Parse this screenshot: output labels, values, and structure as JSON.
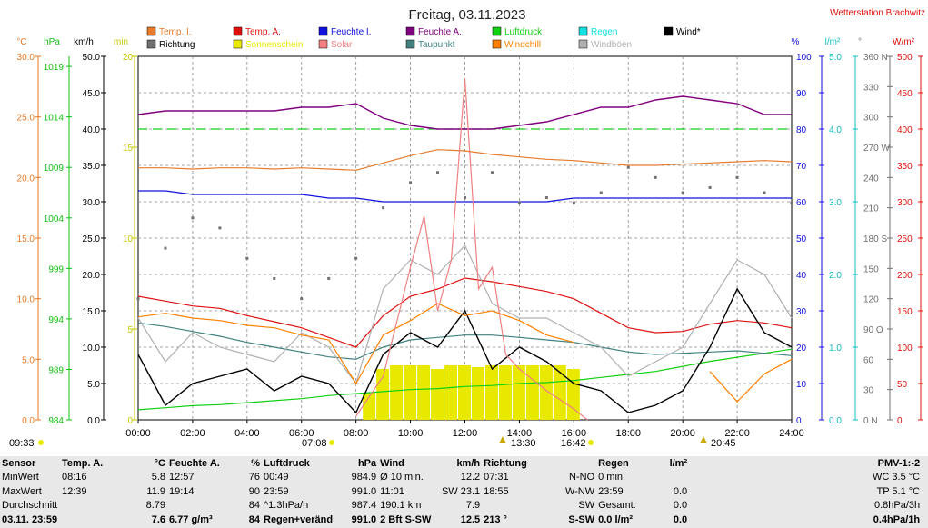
{
  "title": "Freitag, 03.11.2023",
  "station": "Wetterstation Brachwitz",
  "legend": [
    {
      "name": "Temp. I.",
      "color": "#e87a2a"
    },
    {
      "name": "Temp. A.",
      "color": "#e01010"
    },
    {
      "name": "Feuchte I.",
      "color": "#1010e0"
    },
    {
      "name": "Feuchte A.",
      "color": "#800080"
    },
    {
      "name": "Luftdruck",
      "color": "#10d010"
    },
    {
      "name": "Regen",
      "color": "#10e0e0"
    },
    {
      "name": "Wind*",
      "color": "#000000"
    },
    {
      "name": "Richtung",
      "color": "#707070"
    },
    {
      "name": "Sonnenschein",
      "color": "#e8e800"
    },
    {
      "name": "Solar",
      "color": "#f08080"
    },
    {
      "name": "Taupunkt",
      "color": "#408080"
    },
    {
      "name": "Windchill",
      "color": "#ff8000"
    },
    {
      "name": "Windböen",
      "color": "#b0b0b0"
    }
  ],
  "axes_headers": {
    "temp": "°C",
    "hpa": "hPa",
    "kmh": "km/h",
    "min": "min",
    "pct": "%",
    "rain": "l/m²",
    "deg": "°",
    "wm2": "W/m²"
  },
  "axes_colors": {
    "temp": "#e87a2a",
    "hpa": "#10c010",
    "kmh": "#000000",
    "min": "#c8c800",
    "pct": "#1010e0",
    "rain": "#10c0c0",
    "deg": "#707070",
    "wm2": "#e01010"
  },
  "chart_data": {
    "type": "line",
    "x_ticks": [
      "00:00",
      "02:00",
      "04:00",
      "06:00",
      "08:00",
      "10:00",
      "12:00",
      "14:00",
      "16:00",
      "18:00",
      "20:00",
      "22:00",
      "24:00"
    ],
    "axes": {
      "temp": {
        "ticks": [
          "30.0",
          "25.0",
          "20.0",
          "15.0",
          "10.0",
          "5.0",
          "0.0"
        ]
      },
      "hpa": {
        "ticks": [
          "1019",
          "1014",
          "1009",
          "1004",
          "999",
          "994",
          "989",
          "984"
        ]
      },
      "kmh": {
        "ticks": [
          "50.0",
          "45.0",
          "40.0",
          "35.0",
          "30.0",
          "25.0",
          "20.0",
          "15.0",
          "10.0",
          "5.0",
          "0.0"
        ]
      },
      "min": {
        "ticks": [
          "20",
          "15",
          "10",
          "5",
          "0"
        ]
      },
      "pct": {
        "ticks": [
          "100",
          "90",
          "80",
          "70",
          "60",
          "50",
          "40",
          "30",
          "20",
          "10",
          "0"
        ]
      },
      "rain": {
        "ticks": [
          "5.0",
          "4.0",
          "3.0",
          "2.0",
          "1.0",
          "0.0"
        ]
      },
      "deg": {
        "ticks": [
          "360 N",
          "330",
          "300",
          "270 W",
          "240",
          "210",
          "180 S",
          "150",
          "120",
          "90 O",
          "60",
          "30",
          "0 N"
        ]
      },
      "wm2": {
        "ticks": [
          "500",
          "450",
          "400",
          "350",
          "300",
          "250",
          "200",
          "150",
          "100",
          "50",
          "0"
        ]
      }
    },
    "series": [
      {
        "name": "Feuchte A.",
        "axis": "pct",
        "color": "#800080",
        "x": [
          0,
          1,
          2,
          3,
          4,
          5,
          6,
          7,
          8,
          9,
          10,
          11,
          12,
          13,
          14,
          15,
          16,
          17,
          18,
          19,
          20,
          21,
          22,
          23,
          24
        ],
        "y": [
          84,
          85,
          85,
          85,
          85,
          85,
          86,
          86,
          87,
          83,
          81,
          80,
          80,
          80,
          81,
          82,
          84,
          86,
          86,
          88,
          89,
          88,
          87,
          84,
          84
        ]
      },
      {
        "name": "Temp. I.",
        "axis": "temp",
        "color": "#e87a2a",
        "x": [
          0,
          1,
          2,
          3,
          4,
          5,
          6,
          7,
          8,
          9,
          10,
          11,
          12,
          13,
          14,
          15,
          16,
          17,
          18,
          19,
          20,
          21,
          22,
          23,
          24
        ],
        "y": [
          20.8,
          20.8,
          20.7,
          20.8,
          20.8,
          20.7,
          20.8,
          20.7,
          20.6,
          21.2,
          21.8,
          22.3,
          22.2,
          21.9,
          21.7,
          21.5,
          21.4,
          21.2,
          21.0,
          21.0,
          21.1,
          21.2,
          21.3,
          21.4,
          21.3
        ]
      },
      {
        "name": "Feuchte I.",
        "axis": "pct",
        "color": "#1010e0",
        "x": [
          0,
          1,
          2,
          3,
          4,
          5,
          6,
          7,
          8,
          9,
          10,
          11,
          12,
          13,
          14,
          15,
          16,
          17,
          18,
          19,
          20,
          21,
          22,
          23,
          24
        ],
        "y": [
          63,
          63,
          62,
          62,
          62,
          62,
          62,
          61,
          61,
          60,
          60,
          60,
          60,
          60,
          60,
          60,
          61,
          61,
          61,
          61,
          61,
          61,
          61,
          61,
          61
        ]
      },
      {
        "name": "Luftdruck",
        "axis": "hpa",
        "color": "#10d010",
        "x": [
          0,
          1,
          2,
          3,
          4,
          5,
          6,
          7,
          8,
          9,
          10,
          11,
          12,
          13,
          14,
          15,
          16,
          17,
          18,
          19,
          20,
          21,
          22,
          23,
          24
        ],
        "y": [
          985.0,
          985.2,
          985.4,
          985.5,
          985.7,
          985.9,
          986.1,
          986.4,
          986.6,
          986.8,
          987.0,
          987.1,
          987.3,
          987.4,
          987.6,
          987.7,
          987.9,
          988.2,
          988.5,
          988.8,
          989.3,
          989.8,
          990.2,
          990.6,
          991.0
        ]
      },
      {
        "name": "Temp. A.",
        "axis": "temp",
        "color": "#e01010",
        "x": [
          0,
          1,
          2,
          3,
          4,
          5,
          6,
          7,
          8,
          9,
          10,
          11,
          12,
          13,
          14,
          15,
          16,
          17,
          18,
          19,
          20,
          21,
          22,
          23,
          24
        ],
        "y": [
          10.2,
          9.8,
          9.4,
          9.2,
          8.6,
          8.1,
          7.6,
          6.8,
          6.0,
          8.6,
          10.2,
          10.8,
          11.7,
          11.4,
          11.0,
          10.6,
          10.0,
          8.8,
          7.6,
          7.2,
          7.3,
          7.9,
          8.2,
          8.0,
          7.6
        ]
      },
      {
        "name": "Taupunkt",
        "axis": "temp",
        "color": "#408080",
        "x": [
          0,
          1,
          2,
          3,
          4,
          5,
          6,
          7,
          8,
          9,
          10,
          11,
          12,
          13,
          14,
          15,
          16,
          17,
          18,
          19,
          20,
          21,
          22,
          23,
          24
        ],
        "y": [
          8.0,
          7.7,
          7.3,
          6.9,
          6.4,
          6.0,
          5.6,
          5.2,
          5.0,
          6.0,
          6.6,
          6.8,
          7.0,
          7.0,
          6.8,
          6.6,
          6.4,
          6.0,
          5.6,
          5.4,
          5.5,
          5.6,
          5.7,
          5.5,
          5.3
        ]
      },
      {
        "name": "Windböen",
        "axis": "kmh",
        "color": "#b0b0b0",
        "x": [
          0,
          1,
          2,
          3,
          4,
          5,
          6,
          7,
          8,
          9,
          10,
          11,
          12,
          13,
          14,
          15,
          16,
          17,
          18,
          19,
          20,
          21,
          22,
          23,
          24
        ],
        "y": [
          14,
          8,
          12,
          10,
          9,
          8,
          12,
          10,
          5,
          18,
          22,
          20,
          24,
          16,
          14,
          14,
          12,
          10,
          6,
          8,
          10,
          16,
          22,
          20,
          14
        ]
      },
      {
        "name": "Wind*",
        "axis": "kmh",
        "color": "#000000",
        "x": [
          0,
          1,
          2,
          3,
          4,
          5,
          6,
          7,
          8,
          9,
          10,
          11,
          12,
          13,
          14,
          15,
          16,
          17,
          18,
          19,
          20,
          21,
          22,
          23,
          24
        ],
        "y": [
          9,
          2,
          5,
          6,
          7,
          4,
          6,
          5,
          1,
          9,
          12,
          10,
          15,
          7,
          10,
          8,
          5,
          4,
          1,
          2,
          4,
          10,
          18,
          12,
          10
        ]
      },
      {
        "name": "Windchill",
        "axis": "temp",
        "color": "#ff8000",
        "x": [
          0,
          1,
          2,
          3,
          4,
          5,
          6,
          7,
          8,
          9,
          10,
          11,
          12,
          13,
          14,
          15,
          16,
          17,
          18,
          19,
          20,
          21,
          22,
          23,
          24
        ],
        "y": [
          8.5,
          8.8,
          8.4,
          8.2,
          7.8,
          7.6,
          7.0,
          6.6,
          3.0,
          7.0,
          8.2,
          9.6,
          8.6,
          9.0,
          8.2,
          7.0,
          6.4,
          null,
          null,
          null,
          null,
          4.0,
          1.5,
          3.8,
          5.0
        ]
      },
      {
        "name": "Solar",
        "axis": "wm2",
        "color": "#f08080",
        "x": [
          8,
          9,
          10,
          10.5,
          11,
          11.5,
          12,
          12.5,
          13,
          13.5,
          14,
          15,
          16,
          16.5
        ],
        "y": [
          5,
          60,
          210,
          280,
          150,
          220,
          470,
          180,
          210,
          90,
          70,
          40,
          15,
          0
        ]
      },
      {
        "name": "Richtung",
        "axis": "deg",
        "color": "#707070",
        "x": [
          0,
          1,
          2,
          3,
          4,
          5,
          6,
          7,
          8,
          9,
          10,
          11,
          12,
          13,
          14,
          15,
          16,
          17,
          18,
          19,
          20,
          21,
          22,
          23,
          24
        ],
        "y": [
          120,
          170,
          200,
          190,
          160,
          140,
          120,
          140,
          160,
          210,
          235,
          245,
          220,
          245,
          215,
          220,
          215,
          225,
          250,
          240,
          225,
          230,
          240,
          225,
          215
        ]
      }
    ],
    "sunshine_minutes": {
      "x": [
        8.5,
        9,
        9.5,
        10,
        10.5,
        11,
        11.5,
        12,
        12.5,
        13,
        13.5,
        14,
        14.5,
        15,
        15.5,
        16
      ],
      "y": [
        1.5,
        2.8,
        3.0,
        3.0,
        3.0,
        2.8,
        3.0,
        3.0,
        2.9,
        3.0,
        3.0,
        3.0,
        3.0,
        3.0,
        3.0,
        2.8
      ]
    },
    "reference_line": {
      "axis": "pct",
      "value": 80,
      "color": "#10d010"
    }
  },
  "time_markers": [
    {
      "label": "09:33",
      "pos": "left"
    },
    {
      "label": "07:08",
      "pos": "sunrise"
    },
    {
      "label": "13:30",
      "pos": "moon"
    },
    {
      "label": "16:42",
      "pos": "sunset"
    },
    {
      "label": "20:45",
      "pos": "moonrise"
    }
  ],
  "stats": {
    "headers": [
      "Sensor",
      "Temp. A.",
      "°C",
      "Feuchte A.",
      "%",
      "Luftdruck",
      "hPa",
      "Wind",
      "km/h",
      "Richtung",
      "",
      "Regen",
      "l/m²",
      "",
      "PMV-1:-2"
    ],
    "rows": [
      [
        "MinWert",
        "08:16",
        "5.8",
        "12:57",
        "76",
        "00:49",
        "984.9",
        "Ø 10 min.",
        "12.2",
        "07:31",
        "N-NO",
        "0 min.",
        "",
        "",
        "WC 3.5 °C"
      ],
      [
        "MaxWert",
        "12:39",
        "11.9",
        "19:14",
        "90",
        "23:59",
        "991.0",
        "11:01",
        "SW 23.1",
        "18:55",
        "W-NW",
        "23:59",
        "0.0",
        "",
        "TP 5.1 °C"
      ],
      [
        "Durchschnitt",
        "",
        "8.79",
        "",
        "84",
        "^1.3hPa/h",
        "987.4",
        "190.1 km",
        "7.9",
        "",
        "SW",
        "Gesamt:",
        "0.0",
        "",
        "0.8hPa/3h"
      ],
      [
        "03.11. 23:59",
        "",
        "7.6",
        "6.77 g/m³",
        "84",
        "Regen+veränd",
        "991.0",
        "2 Bft S-SW",
        "12.5",
        "213 °",
        "S-SW",
        "0.0 l/m²",
        "0.0",
        "",
        "0.4hPa/1h"
      ]
    ]
  }
}
